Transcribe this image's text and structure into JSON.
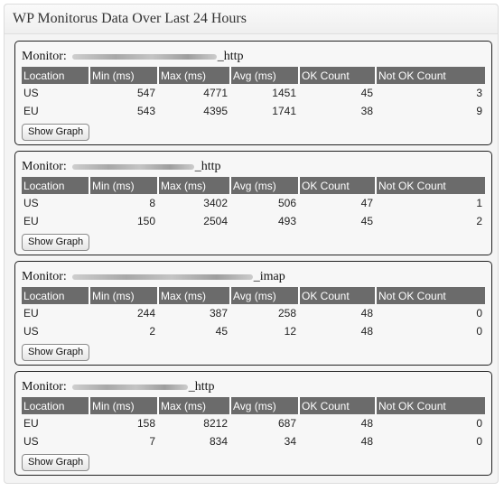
{
  "widget": {
    "title": "WP Monitorus Data Over Last 24 Hours"
  },
  "columns": [
    "Location",
    "Min (ms)",
    "Max (ms)",
    "Avg (ms)",
    "OK Count",
    "Not OK Count"
  ],
  "monitor_label": "Monitor:",
  "show_graph_label": "Show Graph",
  "monitors": [
    {
      "suffix": "_http",
      "rows": [
        [
          "US",
          "547",
          "4771",
          "1451",
          "45",
          "3"
        ],
        [
          "EU",
          "543",
          "4395",
          "1741",
          "38",
          "9"
        ]
      ]
    },
    {
      "suffix": "_http",
      "rows": [
        [
          "US",
          "8",
          "3402",
          "506",
          "47",
          "1"
        ],
        [
          "EU",
          "150",
          "2504",
          "493",
          "45",
          "2"
        ]
      ]
    },
    {
      "suffix": "_imap",
      "rows": [
        [
          "EU",
          "244",
          "387",
          "258",
          "48",
          "0"
        ],
        [
          "US",
          "2",
          "45",
          "12",
          "48",
          "0"
        ]
      ]
    },
    {
      "suffix": "_http",
      "rows": [
        [
          "EU",
          "158",
          "8212",
          "687",
          "48",
          "0"
        ],
        [
          "US",
          "7",
          "834",
          "34",
          "48",
          "0"
        ]
      ]
    }
  ]
}
